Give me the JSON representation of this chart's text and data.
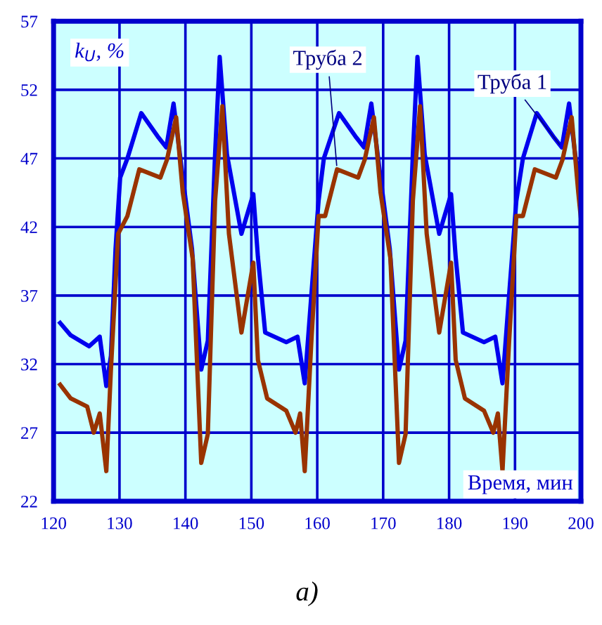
{
  "chart_data": {
    "type": "line",
    "ylabel": "k$_{U}$, %",
    "xlabel": "Время, мин",
    "annotations": [
      "а)"
    ],
    "xlim": [
      120,
      200
    ],
    "xticks": [
      120,
      130,
      140,
      150,
      160,
      170,
      180,
      190,
      200
    ],
    "ylim": [
      22,
      57
    ],
    "yticks": [
      22,
      27,
      32,
      37,
      42,
      47,
      52,
      57
    ],
    "grid": true,
    "legend": false,
    "marker": "none",
    "line_style": "solid",
    "series": [
      {
        "name": "Труба 1",
        "color": "#0000ee",
        "x": [
          121,
          122.6,
          125.4,
          127.0,
          128.0,
          128.7,
          129.4,
          130.1,
          131.2,
          133.3,
          135.8,
          137.1,
          138.2,
          139.6,
          141.0,
          142.4,
          143.4,
          144.5,
          145.2,
          146.3,
          148.5,
          150.3,
          151.0,
          152.1,
          155.3,
          157.0,
          158.1,
          159.1,
          160.2,
          161.0,
          163.3,
          165.8,
          167.1,
          168.2,
          169.6,
          171.0,
          172.4,
          173.4,
          174.5,
          175.2,
          176.3,
          178.5,
          180.3,
          181.0,
          182.1,
          185.3,
          187.0,
          188.1,
          189.1,
          190.2,
          191.2,
          193.3,
          195.8,
          197.1,
          198.2,
          199.2,
          200
        ],
        "values": [
          35.0,
          34.1,
          33.3,
          34.0,
          30.4,
          32.6,
          40.4,
          45.6,
          47.0,
          50.3,
          48.6,
          47.8,
          51.0,
          45.6,
          40.4,
          31.6,
          33.7,
          47.3,
          54.4,
          47.3,
          41.5,
          44.4,
          39.8,
          34.3,
          33.6,
          34.0,
          30.6,
          37.0,
          43.9,
          47.0,
          50.3,
          48.6,
          47.8,
          51.0,
          45.6,
          40.4,
          31.6,
          33.7,
          47.3,
          54.4,
          47.3,
          41.5,
          44.4,
          39.8,
          34.3,
          33.6,
          34.0,
          30.6,
          37.0,
          43.9,
          47.0,
          50.3,
          48.6,
          47.8,
          51.0,
          47.0,
          45.6
        ]
      },
      {
        "name": "Труба 2",
        "color": "#993300",
        "x": [
          121,
          122.6,
          125.1,
          126.1,
          127.0,
          128.0,
          128.7,
          129.8,
          131.2,
          133.0,
          136.2,
          137.2,
          138.6,
          139.6,
          141.1,
          142.4,
          143.4,
          144.5,
          145.6,
          146.6,
          148.5,
          150.3,
          151.0,
          152.4,
          155.3,
          156.7,
          157.4,
          158.1,
          159.1,
          160.2,
          161.2,
          163.0,
          166.2,
          167.2,
          168.6,
          169.6,
          171.1,
          172.4,
          173.4,
          174.5,
          175.6,
          176.6,
          178.5,
          180.3,
          181.0,
          182.4,
          185.3,
          186.7,
          187.4,
          188.1,
          189.1,
          190.2,
          191.2,
          193.0,
          196.2,
          197.2,
          198.6,
          199.6,
          200
        ],
        "values": [
          30.5,
          29.5,
          28.9,
          27.0,
          28.4,
          24.2,
          31.6,
          41.5,
          42.8,
          46.2,
          45.6,
          46.9,
          50.0,
          44.5,
          39.7,
          24.8,
          26.9,
          43.9,
          50.8,
          41.5,
          34.3,
          39.4,
          32.3,
          29.5,
          28.6,
          27.0,
          28.4,
          24.2,
          33.6,
          42.8,
          42.8,
          46.2,
          45.6,
          46.9,
          50.0,
          44.5,
          39.7,
          24.8,
          26.9,
          43.9,
          50.8,
          41.5,
          34.3,
          39.4,
          32.3,
          29.5,
          28.6,
          27.0,
          28.4,
          24.2,
          33.6,
          42.8,
          42.8,
          46.2,
          45.6,
          46.9,
          50.0,
          44.5,
          42.6
        ]
      }
    ]
  }
}
